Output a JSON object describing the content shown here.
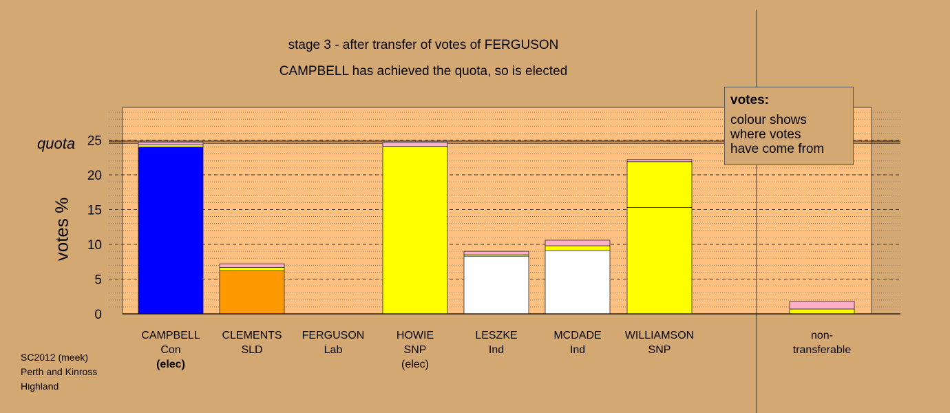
{
  "title": "stage 3 - after transfer of votes of FERGUSON",
  "subtitle": "CAMPBELL has achieved the quota, so is elected",
  "footer": [
    "SC2012 (meek)",
    "Perth and Kinross",
    "Highland"
  ],
  "legend": {
    "heading": "votes:",
    "lines": [
      "colour shows",
      "where votes",
      "have come from"
    ]
  },
  "colors": {
    "background": "#D4A873",
    "plot_area": "#FFC080",
    "Con": "#0000FF",
    "SLD": "#FF9900",
    "SNP": "#FFFF00",
    "Ind": "#FFFFFF",
    "Lab_transfer": "#FFB0C8",
    "nontransferable": "#FFB0C8"
  },
  "chart_data": {
    "type": "bar",
    "stacked": true,
    "ylabel": "votes %",
    "quota_label": "quota",
    "quota": 24.7,
    "ylim": [
      0,
      30
    ],
    "yticks": [
      0,
      5,
      10,
      15,
      20,
      25
    ],
    "categories": [
      {
        "name": "CAMPBELL",
        "party": "Con",
        "note": "(elec)",
        "note_bold": true
      },
      {
        "name": "CLEMENTS",
        "party": "SLD",
        "note": ""
      },
      {
        "name": "FERGUSON",
        "party": "Lab",
        "note": ""
      },
      {
        "name": "HOWIE",
        "party": "SNP",
        "note": "(elec)",
        "note_bold": false
      },
      {
        "name": "LESZKE",
        "party": "Ind",
        "note": ""
      },
      {
        "name": "MCDADE",
        "party": "Ind",
        "note": ""
      },
      {
        "name": "WILLIAMSON",
        "party": "SNP",
        "note": ""
      },
      {
        "name": "non-",
        "party": "transferable",
        "note": ""
      }
    ],
    "bars": [
      {
        "segments": [
          {
            "value": 24.0,
            "color": "#0000FF"
          },
          {
            "value": 0.3,
            "color": "#FFFF00"
          },
          {
            "value": 0.4,
            "color": "#FFB0C8"
          }
        ]
      },
      {
        "segments": [
          {
            "value": 6.2,
            "color": "#FF9900"
          },
          {
            "value": 0.5,
            "color": "#FFFF00"
          },
          {
            "value": 0.5,
            "color": "#FFB0C8"
          }
        ]
      },
      {
        "segments": []
      },
      {
        "segments": [
          {
            "value": 24.1,
            "color": "#FFFF00"
          },
          {
            "value": 0.6,
            "color": "#FFB0C8"
          }
        ]
      },
      {
        "segments": [
          {
            "value": 8.3,
            "color": "#FFFFFF"
          },
          {
            "value": 0.2,
            "color": "#FFFF00"
          },
          {
            "value": 0.5,
            "color": "#FFB0C8"
          }
        ]
      },
      {
        "segments": [
          {
            "value": 9.1,
            "color": "#FFFFFF"
          },
          {
            "value": 0.7,
            "color": "#FFFF00"
          },
          {
            "value": 0.8,
            "color": "#FFB0C8"
          }
        ]
      },
      {
        "segments": [
          {
            "value": 15.3,
            "color": "#FFFF00"
          },
          {
            "value": 6.6,
            "color": "#FFFF00"
          },
          {
            "value": 0.3,
            "color": "#FFB0C8"
          }
        ]
      },
      {
        "segments": [
          {
            "value": 0.7,
            "color": "#FFFF00"
          },
          {
            "value": 1.1,
            "color": "#FFB0C8"
          }
        ]
      }
    ]
  }
}
